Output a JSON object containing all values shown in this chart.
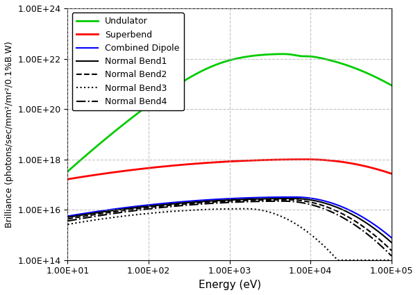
{
  "title": "",
  "xlabel": "Energy (eV)",
  "ylabel": "Brilliance (photons/sec/mm²/mr²/0.1%B.W)",
  "xtick_labels": [
    "1.00E+01",
    "1.00E+02",
    "1.00E+03",
    "1.00E+04",
    "1.00E+05"
  ],
  "xtick_vals": [
    1,
    2,
    3,
    4,
    5
  ],
  "ytick_labels": [
    "1.00E+14",
    "1.00E+16",
    "1.00E+18",
    "1.00E+20",
    "1.00E+22",
    "1.00E+24"
  ],
  "ytick_vals": [
    14,
    16,
    18,
    20,
    22,
    24
  ],
  "xlim": [
    10.0,
    100000.0
  ],
  "ylim": [
    100000000000000.0,
    1e+24
  ],
  "legend_entries": [
    {
      "label": "Undulator",
      "color": "#00cc00",
      "linestyle": "-",
      "linewidth": 2.0
    },
    {
      "label": "Superbend",
      "color": "#ff0000",
      "linestyle": "-",
      "linewidth": 2.0
    },
    {
      "label": "Combined Dipole",
      "color": "#0000ff",
      "linestyle": "-",
      "linewidth": 1.5
    },
    {
      "label": "Normal Bend1",
      "color": "#000000",
      "linestyle": "-",
      "linewidth": 1.5
    },
    {
      "label": "Normal Bend2",
      "color": "#000000",
      "linestyle": "--",
      "linewidth": 1.5
    },
    {
      "label": "Normal Bend3",
      "color": "#000000",
      "linestyle": ":",
      "linewidth": 1.5
    },
    {
      "label": "Normal Bend4",
      "color": "#000000",
      "linestyle": "-.",
      "linewidth": 1.5
    }
  ],
  "grid_color": "#aaaaaa",
  "grid_linestyle": "--",
  "grid_alpha": 0.7
}
